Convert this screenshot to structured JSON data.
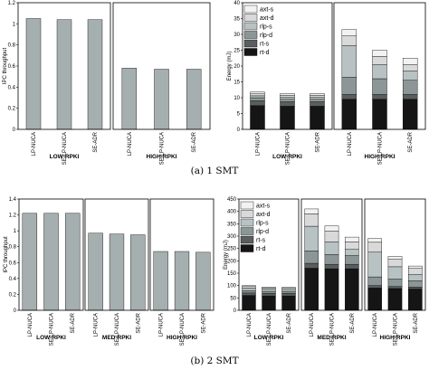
{
  "chart_data": [
    {
      "id": "ipc_1smt",
      "type": "bar",
      "ylabel": "IPC throughput",
      "ylim": [
        0,
        1.2
      ],
      "yticks": [
        0,
        0.2,
        0.4,
        0.6,
        0.8,
        1,
        1.2
      ],
      "groups": [
        {
          "name": "LOW-RPKI",
          "categories": [
            "LP-NUCA",
            "SE-LP-NUCA",
            "SE-ADR"
          ],
          "values": [
            1.05,
            1.04,
            1.04
          ]
        },
        {
          "name": "HIGH-RPKI",
          "categories": [
            "LP-NUCA",
            "SE-LP-NUCA",
            "SE-ADR"
          ],
          "values": [
            0.58,
            0.57,
            0.57
          ]
        }
      ]
    },
    {
      "id": "energy_1smt",
      "type": "bar",
      "stacked": true,
      "ylabel": "Energy (mJ)",
      "ylim": [
        0,
        40
      ],
      "yticks": [
        0,
        5,
        10,
        15,
        20,
        25,
        30,
        35,
        40
      ],
      "stack_order": [
        "rt-d",
        "rt-s",
        "rlp-d",
        "rlp-s",
        "axt-d",
        "axt-s"
      ],
      "legend": [
        {
          "name": "axt-s",
          "color": "#f2f2f2"
        },
        {
          "name": "axt-d",
          "color": "#d9d9d9"
        },
        {
          "name": "rlp-s",
          "color": "#b9c2c2"
        },
        {
          "name": "rlp-d",
          "color": "#8c9696"
        },
        {
          "name": "rt-s",
          "color": "#5a5e5e"
        },
        {
          "name": "rt-d",
          "color": "#151515"
        }
      ],
      "groups": [
        {
          "name": "LOW-RPKI",
          "categories": [
            "LP-NUCA",
            "SE-LP-NUCA",
            "SE-ADR"
          ],
          "segments": [
            [
              7.5,
              1.5,
              1.0,
              0.6,
              0.6,
              0.6
            ],
            [
              7.3,
              1.4,
              0.8,
              0.6,
              0.6,
              0.6
            ],
            [
              7.3,
              1.4,
              0.8,
              0.6,
              0.6,
              0.6
            ]
          ]
        },
        {
          "name": "HIGH-RPKI",
          "categories": [
            "LP-NUCA",
            "SE-LP-NUCA",
            "SE-ADR"
          ],
          "segments": [
            [
              9.5,
              1.5,
              5.5,
              10.0,
              3.0,
              2.0
            ],
            [
              9.5,
              1.5,
              5.0,
              4.5,
              2.5,
              2.0
            ],
            [
              9.5,
              1.5,
              4.5,
              3.0,
              2.0,
              2.0
            ]
          ]
        }
      ]
    },
    {
      "id": "ipc_2smt",
      "type": "bar",
      "ylabel": "IPC throughput",
      "ylim": [
        0,
        1.4
      ],
      "yticks": [
        0,
        0.2,
        0.4,
        0.6,
        0.8,
        1,
        1.2,
        1.4
      ],
      "groups": [
        {
          "name": "LOW-RPKI",
          "categories": [
            "LP-NUCA",
            "SE-LP-NUCA",
            "SE-ADR"
          ],
          "values": [
            1.22,
            1.22,
            1.22
          ]
        },
        {
          "name": "MED-RPKI",
          "categories": [
            "LP-NUCA",
            "SE-LP-NUCA",
            "SE-ADR"
          ],
          "values": [
            0.97,
            0.96,
            0.95
          ]
        },
        {
          "name": "HIGH-RPKI",
          "categories": [
            "LP-NUCA",
            "SE-LP-NUCA",
            "SE-ADR"
          ],
          "values": [
            0.74,
            0.74,
            0.73
          ]
        }
      ]
    },
    {
      "id": "energy_2smt",
      "type": "bar",
      "stacked": true,
      "ylabel": "Energy (mJ)",
      "ylim": [
        0,
        450
      ],
      "yticks": [
        0,
        50,
        100,
        150,
        200,
        250,
        300,
        350,
        400,
        450
      ],
      "stack_order": [
        "rt-d",
        "rt-s",
        "rlp-d",
        "rlp-s",
        "axt-d",
        "axt-s"
      ],
      "legend": [
        {
          "name": "axt-s",
          "color": "#f2f2f2"
        },
        {
          "name": "axt-d",
          "color": "#d9d9d9"
        },
        {
          "name": "rlp-s",
          "color": "#b9c2c2"
        },
        {
          "name": "rlp-d",
          "color": "#8c9696"
        },
        {
          "name": "rt-s",
          "color": "#5a5e5e"
        },
        {
          "name": "rt-d",
          "color": "#151515"
        }
      ],
      "groups": [
        {
          "name": "LOW-RPKI",
          "categories": [
            "LP-NUCA",
            "SE-LP-NUCA",
            "SE-ADR"
          ],
          "segments": [
            [
              60,
              10,
              10,
              10,
              6,
              4
            ],
            [
              58,
              10,
              8,
              8,
              6,
              4
            ],
            [
              58,
              10,
              8,
              8,
              5,
              4
            ]
          ]
        },
        {
          "name": "MED-RPKI",
          "categories": [
            "LP-NUCA",
            "SE-LP-NUCA",
            "SE-ADR"
          ],
          "segments": [
            [
              170,
              20,
              50,
              100,
              50,
              20
            ],
            [
              168,
              18,
              40,
              50,
              45,
              20
            ],
            [
              168,
              18,
              35,
              25,
              30,
              20
            ]
          ]
        },
        {
          "name": "HIGH-RPKI",
          "categories": [
            "LP-NUCA",
            "SE-LP-NUCA",
            "SE-ADR"
          ],
          "segments": [
            [
              90,
              10,
              35,
              100,
              40,
              15
            ],
            [
              88,
              8,
              30,
              50,
              30,
              12
            ],
            [
              86,
              8,
              25,
              25,
              25,
              10
            ]
          ]
        }
      ]
    }
  ],
  "captions": {
    "top": "(a) 1 SMT",
    "bottom": "(b) 2 SMT"
  },
  "colors": {
    "ipc_bar": "#a6afaf",
    "axis": "#000000"
  }
}
